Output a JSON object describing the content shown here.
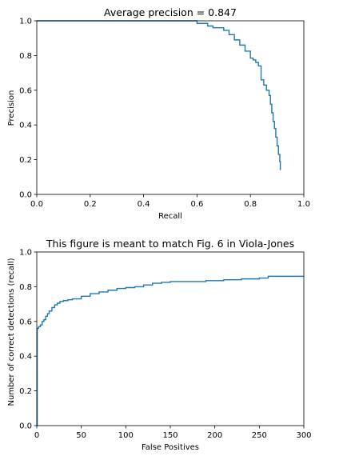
{
  "chart_data": [
    {
      "type": "line",
      "title": "Average precision = 0.847",
      "xlabel": "Recall",
      "ylabel": "Precision",
      "xlim": [
        0,
        1
      ],
      "ylim": [
        0,
        1
      ],
      "xticks": [
        "0.0",
        "0.2",
        "0.4",
        "0.6",
        "0.8",
        "1.0"
      ],
      "yticks": [
        "0.0",
        "0.2",
        "0.4",
        "0.6",
        "0.8",
        "1.0"
      ],
      "grid": false,
      "series": [
        {
          "color": "#1f77b4",
          "x": [
            0.0,
            0.56,
            0.6,
            0.64,
            0.66,
            0.7,
            0.72,
            0.74,
            0.76,
            0.78,
            0.8,
            0.81,
            0.82,
            0.83,
            0.84,
            0.85,
            0.86,
            0.87,
            0.875,
            0.88,
            0.885,
            0.89,
            0.895,
            0.9,
            0.905,
            0.91,
            0.912
          ],
          "y": [
            1.0,
            1.0,
            0.985,
            0.97,
            0.96,
            0.945,
            0.92,
            0.89,
            0.86,
            0.825,
            0.785,
            0.775,
            0.76,
            0.74,
            0.66,
            0.63,
            0.6,
            0.57,
            0.52,
            0.47,
            0.42,
            0.38,
            0.33,
            0.28,
            0.23,
            0.19,
            0.14
          ]
        }
      ]
    },
    {
      "type": "line",
      "title": "This figure is meant to match Fig. 6 in Viola-Jones",
      "xlabel": "False Positives",
      "ylabel": "Number of correct detections (recall)",
      "xlim": [
        0,
        300
      ],
      "ylim": [
        0,
        1
      ],
      "xticks": [
        "0",
        "50",
        "100",
        "150",
        "200",
        "250",
        "300"
      ],
      "yticks": [
        "0.0",
        "0.2",
        "0.4",
        "0.6",
        "0.8",
        "1.0"
      ],
      "grid": false,
      "series": [
        {
          "color": "#1f77b4",
          "x": [
            0,
            0.5,
            2,
            4,
            6,
            8,
            10,
            12,
            14,
            17,
            20,
            23,
            26,
            30,
            35,
            40,
            50,
            60,
            70,
            80,
            90,
            100,
            110,
            120,
            130,
            140,
            150,
            170,
            190,
            210,
            230,
            250,
            260,
            280,
            300
          ],
          "y": [
            0.0,
            0.56,
            0.57,
            0.58,
            0.6,
            0.61,
            0.63,
            0.645,
            0.66,
            0.68,
            0.695,
            0.705,
            0.715,
            0.72,
            0.725,
            0.73,
            0.745,
            0.76,
            0.77,
            0.78,
            0.79,
            0.795,
            0.8,
            0.81,
            0.82,
            0.825,
            0.83,
            0.83,
            0.835,
            0.84,
            0.845,
            0.85,
            0.86,
            0.86,
            0.86
          ]
        }
      ]
    }
  ]
}
